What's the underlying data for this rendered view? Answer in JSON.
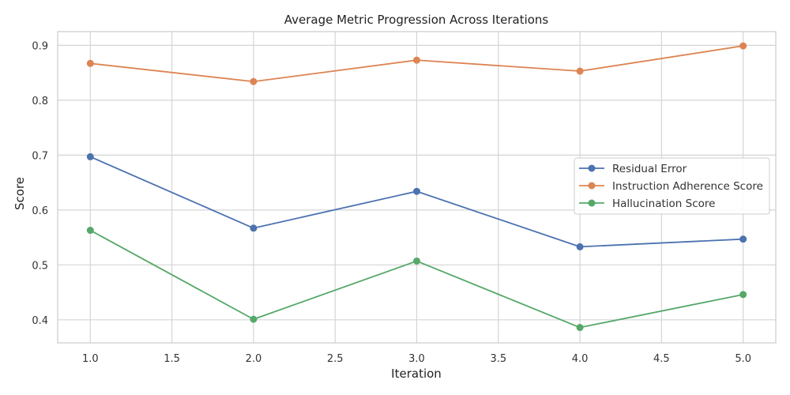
{
  "chart_data": {
    "type": "line",
    "title": "Average Metric Progression Across Iterations",
    "xlabel": "Iteration",
    "ylabel": "Score",
    "x": [
      1.0,
      2.0,
      3.0,
      4.0,
      5.0
    ],
    "xlim": [
      0.8,
      5.2
    ],
    "ylim": [
      0.358,
      0.925
    ],
    "xticks": [
      "1.0",
      "1.5",
      "2.0",
      "2.5",
      "3.0",
      "3.5",
      "4.0",
      "4.5",
      "5.0"
    ],
    "xtick_values": [
      1.0,
      1.5,
      2.0,
      2.5,
      3.0,
      3.5,
      4.0,
      4.5,
      5.0
    ],
    "yticks": [
      "0.4",
      "0.5",
      "0.6",
      "0.7",
      "0.8",
      "0.9"
    ],
    "ytick_values": [
      0.4,
      0.5,
      0.6,
      0.7,
      0.8,
      0.9
    ],
    "grid": true,
    "legend_position": "center-right",
    "series": [
      {
        "name": "Residual Error",
        "color": "#4c72b0",
        "values": [
          0.697,
          0.567,
          0.634,
          0.533,
          0.547
        ]
      },
      {
        "name": "Instruction Adherence Score",
        "color": "#dd8452",
        "values": [
          0.867,
          0.834,
          0.873,
          0.853,
          0.899
        ]
      },
      {
        "name": "Hallucination Score",
        "color": "#55a868",
        "values": [
          0.563,
          0.401,
          0.507,
          0.386,
          0.446
        ]
      }
    ]
  }
}
